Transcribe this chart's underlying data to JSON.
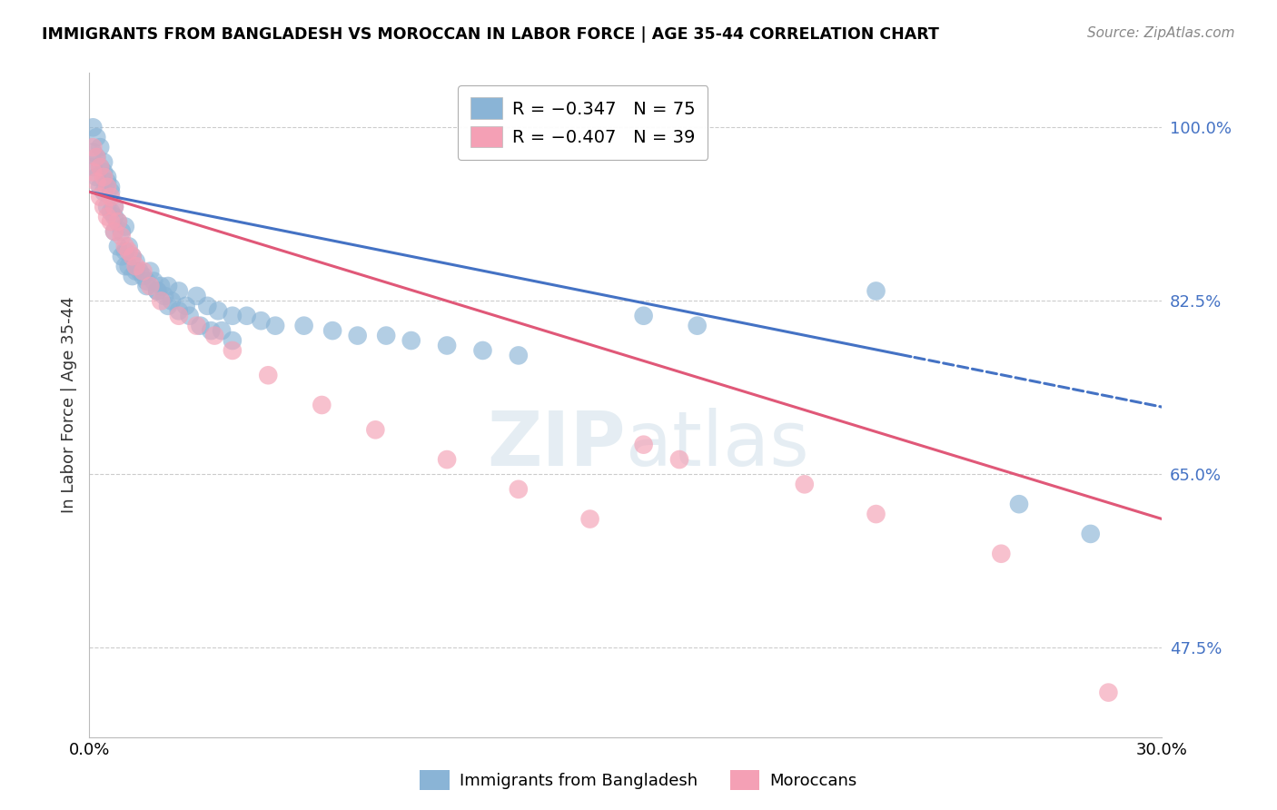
{
  "title": "IMMIGRANTS FROM BANGLADESH VS MOROCCAN IN LABOR FORCE | AGE 35-44 CORRELATION CHART",
  "source": "Source: ZipAtlas.com",
  "ylabel": "In Labor Force | Age 35-44",
  "xmin": 0.0,
  "xmax": 0.3,
  "ymin": 0.385,
  "ymax": 1.055,
  "yticks": [
    0.475,
    0.65,
    0.825,
    1.0
  ],
  "ytick_labels": [
    "47.5%",
    "65.0%",
    "82.5%",
    "100.0%"
  ],
  "xticks": [
    0.0,
    0.05,
    0.1,
    0.15,
    0.2,
    0.25,
    0.3
  ],
  "xtick_labels": [
    "0.0%",
    "",
    "",
    "",
    "",
    "",
    "30.0%"
  ],
  "legend_blue_label": "R = −0.347   N = 75",
  "legend_pink_label": "R = −0.407   N = 39",
  "bottom_legend_blue": "Immigrants from Bangladesh",
  "bottom_legend_pink": "Moroccans",
  "blue_color": "#8ab4d6",
  "pink_color": "#f4a0b5",
  "blue_line_color": "#4472c4",
  "pink_line_color": "#e05878",
  "blue_trendline_x0": 0.0,
  "blue_trendline_y0": 0.935,
  "blue_trendline_x1": 0.3,
  "blue_trendline_y1": 0.718,
  "blue_solid_cutoff": 0.23,
  "pink_trendline_x0": 0.0,
  "pink_trendline_y0": 0.935,
  "pink_trendline_x1": 0.3,
  "pink_trendline_y1": 0.605,
  "blue_scatter_x": [
    0.001,
    0.001,
    0.001,
    0.002,
    0.002,
    0.002,
    0.003,
    0.003,
    0.003,
    0.004,
    0.004,
    0.004,
    0.005,
    0.005,
    0.005,
    0.006,
    0.006,
    0.006,
    0.007,
    0.007,
    0.007,
    0.008,
    0.008,
    0.009,
    0.009,
    0.01,
    0.01,
    0.011,
    0.011,
    0.012,
    0.012,
    0.013,
    0.014,
    0.015,
    0.016,
    0.017,
    0.018,
    0.019,
    0.02,
    0.021,
    0.022,
    0.023,
    0.025,
    0.027,
    0.03,
    0.033,
    0.036,
    0.04,
    0.044,
    0.048,
    0.052,
    0.06,
    0.068,
    0.075,
    0.083,
    0.09,
    0.1,
    0.11,
    0.12,
    0.01,
    0.013,
    0.016,
    0.019,
    0.022,
    0.025,
    0.028,
    0.031,
    0.034,
    0.037,
    0.04,
    0.155,
    0.17,
    0.22,
    0.26,
    0.28
  ],
  "blue_scatter_y": [
    0.975,
    0.96,
    1.0,
    0.97,
    0.95,
    0.99,
    0.96,
    0.94,
    0.98,
    0.955,
    0.935,
    0.965,
    0.945,
    0.92,
    0.95,
    0.94,
    0.915,
    0.935,
    0.92,
    0.895,
    0.91,
    0.905,
    0.88,
    0.895,
    0.87,
    0.9,
    0.875,
    0.88,
    0.86,
    0.87,
    0.85,
    0.865,
    0.855,
    0.85,
    0.84,
    0.855,
    0.845,
    0.835,
    0.84,
    0.83,
    0.84,
    0.825,
    0.835,
    0.82,
    0.83,
    0.82,
    0.815,
    0.81,
    0.81,
    0.805,
    0.8,
    0.8,
    0.795,
    0.79,
    0.79,
    0.785,
    0.78,
    0.775,
    0.77,
    0.86,
    0.855,
    0.845,
    0.835,
    0.82,
    0.815,
    0.81,
    0.8,
    0.795,
    0.795,
    0.785,
    0.81,
    0.8,
    0.835,
    0.62,
    0.59
  ],
  "pink_scatter_x": [
    0.001,
    0.001,
    0.002,
    0.002,
    0.003,
    0.003,
    0.004,
    0.004,
    0.005,
    0.005,
    0.006,
    0.006,
    0.007,
    0.007,
    0.008,
    0.009,
    0.01,
    0.011,
    0.012,
    0.013,
    0.015,
    0.017,
    0.02,
    0.025,
    0.03,
    0.035,
    0.04,
    0.05,
    0.065,
    0.08,
    0.1,
    0.12,
    0.14,
    0.155,
    0.165,
    0.2,
    0.22,
    0.255,
    0.285
  ],
  "pink_scatter_y": [
    0.98,
    0.955,
    0.97,
    0.945,
    0.96,
    0.93,
    0.95,
    0.92,
    0.94,
    0.91,
    0.93,
    0.905,
    0.92,
    0.895,
    0.905,
    0.89,
    0.88,
    0.875,
    0.87,
    0.86,
    0.855,
    0.84,
    0.825,
    0.81,
    0.8,
    0.79,
    0.775,
    0.75,
    0.72,
    0.695,
    0.665,
    0.635,
    0.605,
    0.68,
    0.665,
    0.64,
    0.61,
    0.57,
    0.43
  ]
}
